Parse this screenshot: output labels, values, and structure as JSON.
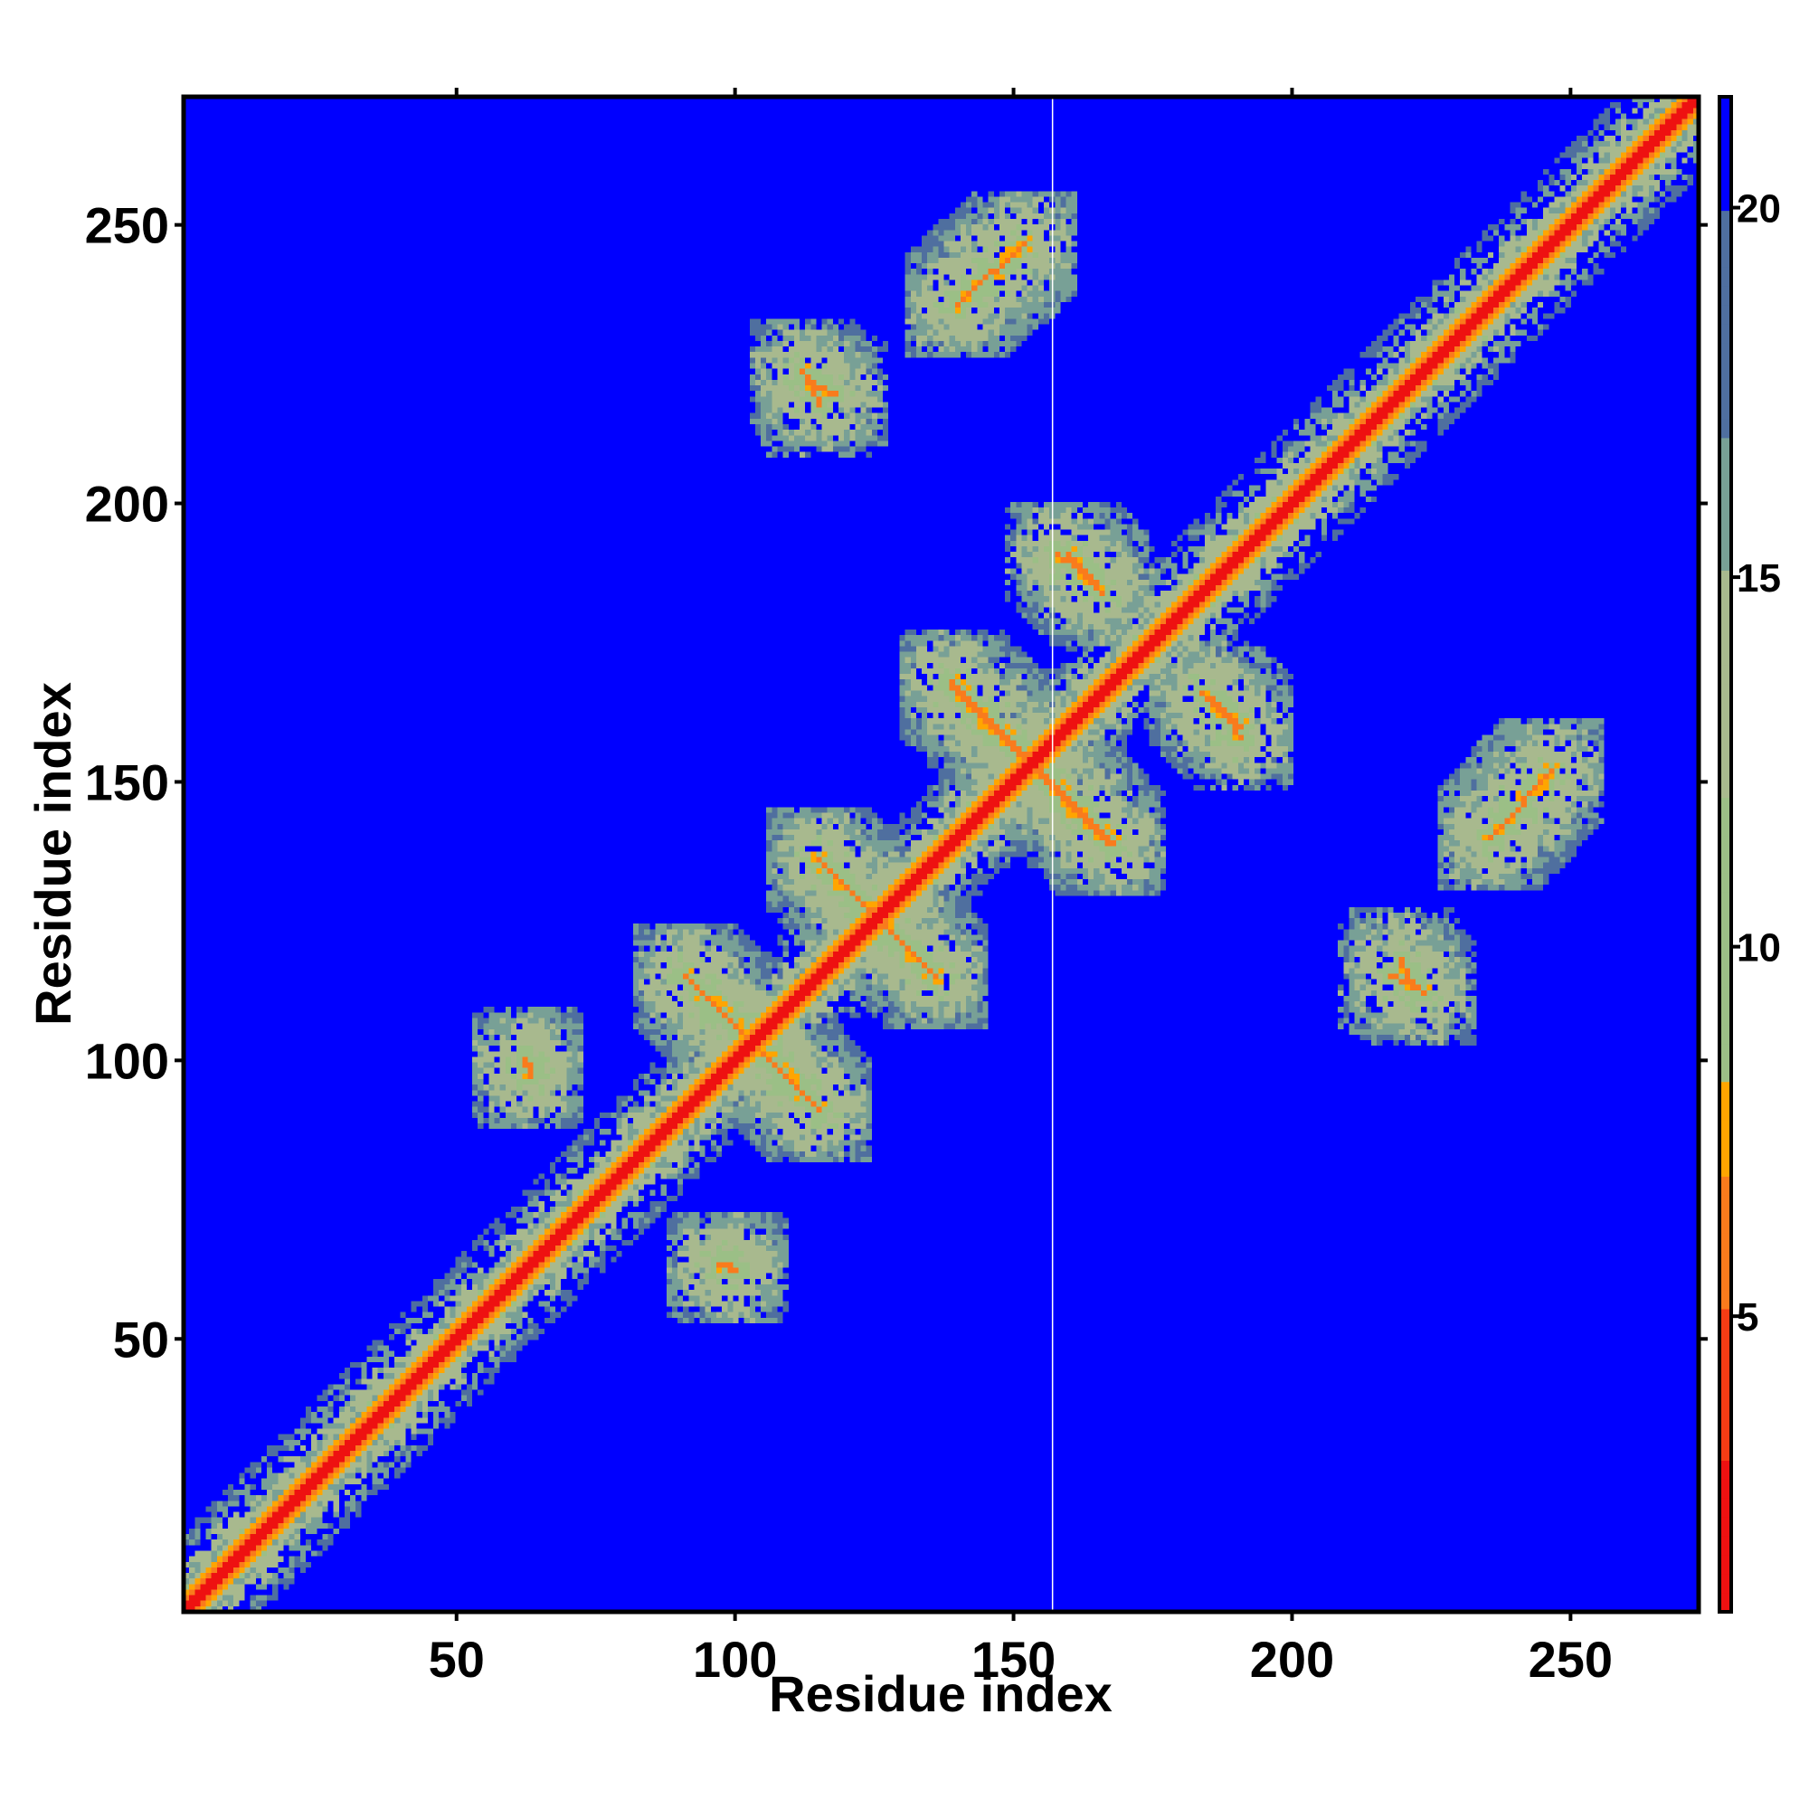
{
  "chart_data": {
    "type": "heatmap",
    "title": "",
    "xlabel": "Residue index",
    "ylabel": "Residue index",
    "xlim": [
      1,
      273
    ],
    "ylim": [
      1,
      273
    ],
    "x_ticks": [
      50,
      100,
      150,
      200,
      250
    ],
    "y_ticks": [
      50,
      100,
      150,
      200,
      250
    ],
    "colorbar": {
      "ticks": [
        5,
        10,
        15,
        20
      ],
      "range": [
        1,
        21.5
      ],
      "colors_low_to_high": [
        "#ee1111",
        "#f97b1c",
        "#ffa500",
        "#9bbf86",
        "#a8b98e",
        "#4f6f9f",
        "#0000ff"
      ]
    },
    "background_value": 21,
    "cutoff_line_x": 157,
    "features": [
      {
        "kind": "diagonal",
        "start": 1,
        "end": 273
      },
      {
        "kind": "antiparallel",
        "x": [
          91,
          115
        ],
        "y": [
          115,
          91
        ]
      },
      {
        "kind": "antiparallel",
        "x": [
          115,
          136
        ],
        "y": [
          136,
          115
        ]
      },
      {
        "kind": "antiparallel",
        "x": [
          98,
          100
        ],
        "y": [
          63,
          62
        ]
      },
      {
        "kind": "antiparallel",
        "x": [
          62,
          63
        ],
        "y": [
          99,
          97
        ]
      },
      {
        "kind": "antiparallel",
        "x": [
          139,
          167
        ],
        "y": [
          168,
          139
        ]
      },
      {
        "kind": "antiparallel",
        "x": [
          158,
          165
        ],
        "y": [
          191,
          186
        ]
      },
      {
        "kind": "antiparallel",
        "x": [
          184,
          191
        ],
        "y": [
          166,
          160
        ]
      },
      {
        "kind": "antiparallel",
        "x": [
          236,
          247
        ],
        "y": [
          140,
          152
        ]
      },
      {
        "kind": "antiparallel",
        "x": [
          140,
          152
        ],
        "y": [
          236,
          247
        ]
      },
      {
        "kind": "antiparallel",
        "x": [
          113,
          118
        ],
        "y": [
          222,
          220
        ]
      },
      {
        "kind": "antiparallel",
        "x": [
          218,
          224
        ],
        "y": [
          115,
          112
        ]
      }
    ]
  }
}
